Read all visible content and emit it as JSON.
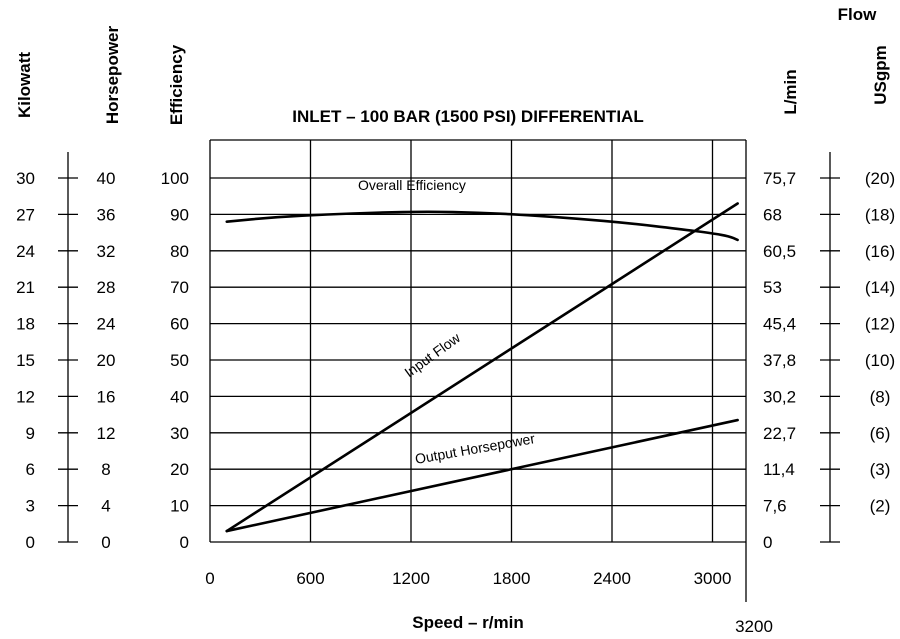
{
  "chart_data": {
    "type": "line",
    "title": "INLET – 100 BAR (1500 PSI) DIFFERENTIAL",
    "xlabel": "Speed – r/min",
    "x_ticks": [
      "0",
      "600",
      "1200",
      "1800",
      "2400",
      "3000"
    ],
    "x_extra_tick": "3200",
    "xlim": [
      0,
      3200
    ],
    "left_axes": [
      {
        "name": "Kilowatt",
        "ticks": [
          "0",
          "3",
          "6",
          "9",
          "12",
          "15",
          "18",
          "21",
          "24",
          "27",
          "30"
        ]
      },
      {
        "name": "Horsepower",
        "ticks": [
          "0",
          "4",
          "8",
          "12",
          "16",
          "20",
          "24",
          "28",
          "32",
          "36",
          "40"
        ]
      },
      {
        "name": "Efficiency",
        "ticks": [
          "0",
          "10",
          "20",
          "30",
          "40",
          "50",
          "60",
          "70",
          "80",
          "90",
          "100"
        ]
      }
    ],
    "right_group_label": "Flow",
    "right_axes": [
      {
        "name": "L/min",
        "ticks": [
          "0",
          "7,6",
          "11,4",
          "22,7",
          "30,2",
          "37,8",
          "45,4",
          "53",
          "60,5",
          "68",
          "75,7"
        ]
      },
      {
        "name": "USgpm",
        "ticks": [
          "",
          "(2)",
          "(3)",
          "(6)",
          "(8)",
          "(10)",
          "(12)",
          "(14)",
          "(16)",
          "(18)",
          "(20)"
        ]
      }
    ],
    "ylim": [
      0,
      100
    ],
    "grid": true,
    "series": [
      {
        "name": "Overall Efficiency",
        "points": [
          [
            100,
            88
          ],
          [
            400,
            89.3
          ],
          [
            700,
            90
          ],
          [
            1000,
            90.5
          ],
          [
            1300,
            90.8
          ],
          [
            1600,
            90.5
          ],
          [
            1900,
            89.8
          ],
          [
            2200,
            88.8
          ],
          [
            2500,
            87.6
          ],
          [
            2800,
            86
          ],
          [
            3000,
            84.8
          ],
          [
            3100,
            84
          ],
          [
            3150,
            83
          ]
        ]
      },
      {
        "name": "Input Flow",
        "points": [
          [
            100,
            3
          ],
          [
            3150,
            93
          ]
        ]
      },
      {
        "name": "Output Horsepower",
        "points": [
          [
            100,
            3
          ],
          [
            3150,
            33.5
          ]
        ]
      }
    ]
  }
}
